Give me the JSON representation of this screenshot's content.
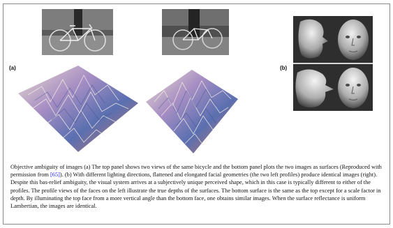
{
  "figure": {
    "label_a": "(a)",
    "label_b": "(b)",
    "panels": {
      "bicycle_left": "bicycle-photo",
      "bicycle_right": "bicycle-photo",
      "surface_left": "surface-plot",
      "surface_right": "surface-plot",
      "faces": "face-renderings"
    },
    "colors": {
      "surface_peak": "#eadfcf",
      "surface_mid": "#a88fc4",
      "surface_deep": "#5a6fb0",
      "surface_shadow": "#c9786a"
    }
  },
  "caption": {
    "part1": "Objective ambiguity of images (a) The top panel shows two views of the same bicycle and the bottom panel plots the two images as surfaces (Reproduced with permission from ",
    "ref": "[65]",
    "part2": "). (b) With different lighting directions, flattened and elongated facial geometries (the two left profiles) produce identical images (right). Despite this bas-relief ambiguity, the visual system arrives at a subjectively unique perceived shape, which in this case is typically different to either of the profiles. The profile views of the faces on the left illustrate the true depths of the surfaces. The bottom surface is the same as the top except for a scale factor in depth. By illuminating the top face from a more vertical angle than the bottom face, one obtains similar images. When the surface reflectance is uniform Lambertian, the images are identical."
  }
}
